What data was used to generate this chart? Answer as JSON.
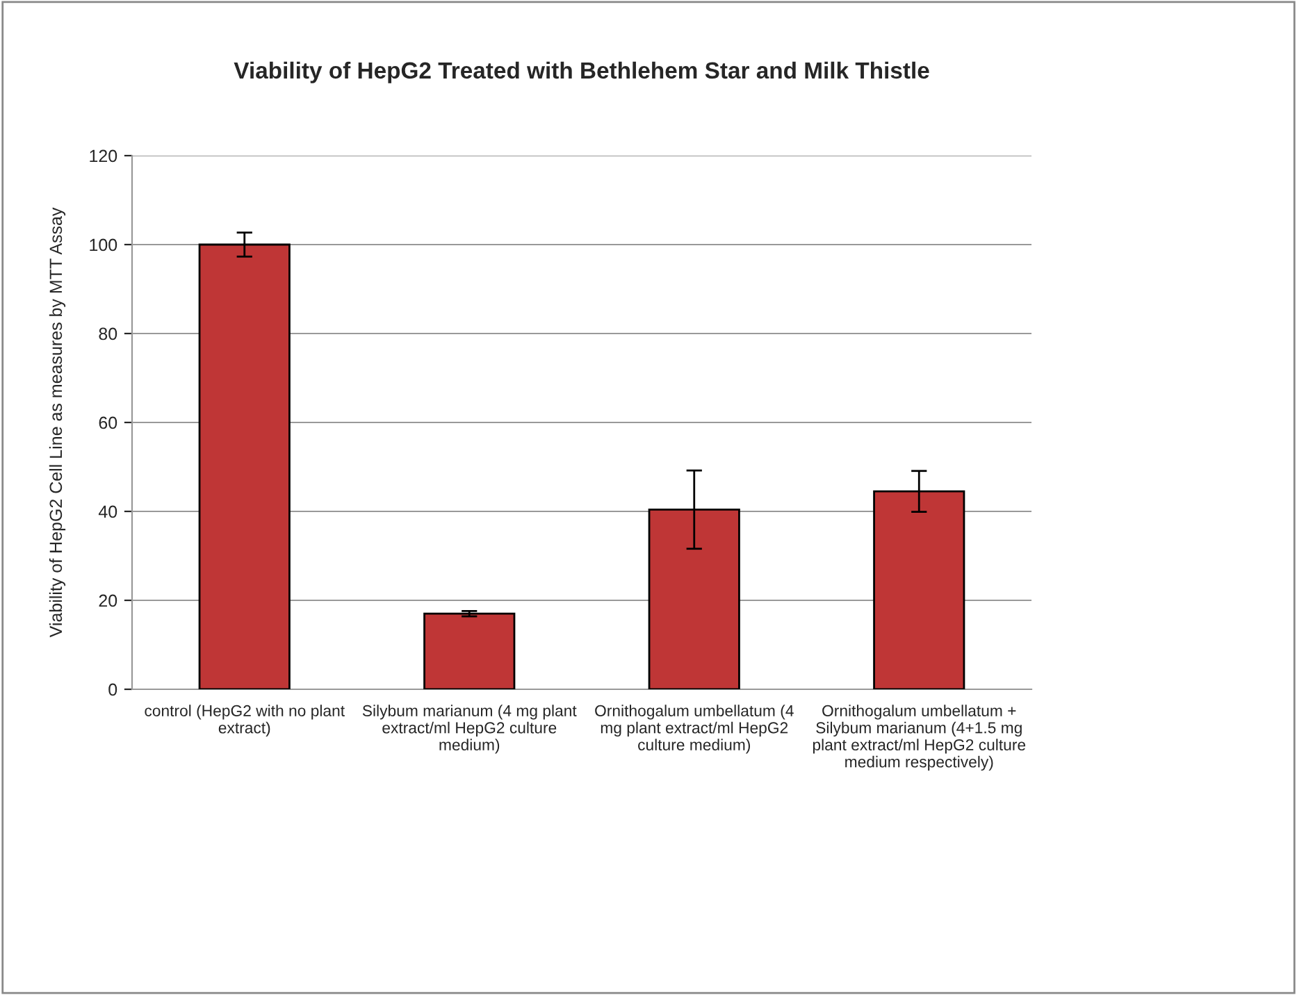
{
  "chart_data": {
    "type": "bar",
    "title": "Viability of HepG2 Treated with Bethlehem Star and Milk Thistle",
    "ylabel": "Viability of HepG2 Cell Line as measures by MTT Assay",
    "categories": [
      "control (HepG2 with no plant\nextract)",
      "Silybum marianum (4 mg plant\nextract/ml HepG2 culture\nmedium)",
      "Ornithogalum umbellatum (4\nmg plant extract/ml HepG2\nculture medium)",
      "Ornithogalum umbellatum +\nSilybum marianum (4+1.5 mg\nplant extract/ml HepG2 culture\nmedium respectively)"
    ],
    "values": [
      100,
      17,
      40.4,
      44.5
    ],
    "errors": [
      2.7,
      0.6,
      8.8,
      4.6
    ],
    "color": "#bf3636",
    "ylim": [
      0,
      120
    ],
    "yticks": [
      0,
      20,
      40,
      60,
      80,
      100,
      120
    ],
    "grid": "y",
    "legend": false
  }
}
